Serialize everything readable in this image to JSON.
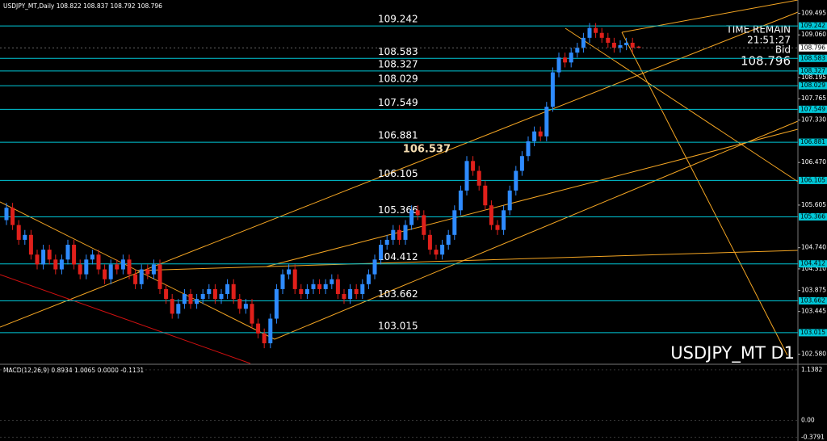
{
  "chart_data": {
    "type": "candlestick",
    "title": "USDJPY_MT,Daily  108.822 108.837 108.792 108.796",
    "watermark": "USDJPY_MT D1",
    "info": {
      "time_remain": "TIME REMAIN",
      "countdown": "21:51:27",
      "bid_label": "Bid",
      "bid": 108.796
    },
    "annotation": 106.537,
    "up_color": "#2e8bff",
    "down_color": "#e0201b",
    "level_color": "#00c8d8",
    "levels": [
      109.242,
      108.583,
      108.327,
      108.029,
      107.549,
      106.881,
      106.105,
      105.366,
      104.412,
      103.662,
      103.015
    ],
    "ylim": [
      102.374,
      109.768
    ],
    "yticks": [
      109.495,
      {
        "value": 109.06,
        "label": "109.060"
      },
      108.195,
      107.765,
      {
        "value": 107.33,
        "label": "107.330"
      },
      {
        "value": 106.47,
        "label": "106.470"
      },
      105.605,
      {
        "value": 104.74,
        "label": "104.740"
      },
      {
        "value": 104.31,
        "label": "104.310"
      },
      103.875,
      103.445,
      {
        "value": 102.58,
        "label": "102.580"
      }
    ],
    "open": [
      105.3,
      105.55,
      105.2,
      104.9,
      105.0,
      104.6,
      104.4,
      104.7,
      104.5,
      104.3,
      104.5,
      104.8,
      104.4,
      104.2,
      104.5,
      104.6,
      104.3,
      104.1,
      104.4,
      104.3,
      104.5,
      104.2,
      104.0,
      104.3,
      104.2,
      104.4,
      103.9,
      103.7,
      103.4,
      103.6,
      103.8,
      103.6,
      103.7,
      103.8,
      103.9,
      103.7,
      103.8,
      104.0,
      103.7,
      103.5,
      103.6,
      103.2,
      103.0,
      102.8,
      103.3,
      103.9,
      104.2,
      104.3,
      103.9,
      103.8,
      103.9,
      104.0,
      103.9,
      104.0,
      104.1,
      103.8,
      103.7,
      103.9,
      103.8,
      104.0,
      104.2,
      104.5,
      104.8,
      104.9,
      105.1,
      104.9,
      105.2,
      105.5,
      105.4,
      105.0,
      104.7,
      104.6,
      104.8,
      105.0,
      105.5,
      105.9,
      106.5,
      106.3,
      106.0,
      105.6,
      105.2,
      105.1,
      105.5,
      105.9,
      106.3,
      106.6,
      106.9,
      107.1,
      107.0,
      107.6,
      108.3,
      108.6,
      108.5,
      108.7,
      108.8,
      109.0,
      109.2,
      109.1,
      109.0,
      108.9,
      108.8,
      108.85,
      108.9,
      108.822
    ],
    "high": [
      105.65,
      105.65,
      105.3,
      105.1,
      105.1,
      104.7,
      104.8,
      104.8,
      104.6,
      104.6,
      104.9,
      104.9,
      104.5,
      104.6,
      104.7,
      104.7,
      104.4,
      104.5,
      104.5,
      104.6,
      104.6,
      104.3,
      104.4,
      104.4,
      104.5,
      104.5,
      104.0,
      103.8,
      103.7,
      103.9,
      103.9,
      103.8,
      103.9,
      104.0,
      104.0,
      103.9,
      104.1,
      104.1,
      103.8,
      103.7,
      103.7,
      103.3,
      103.1,
      103.4,
      104.0,
      104.3,
      104.4,
      104.4,
      104.0,
      104.0,
      104.1,
      104.1,
      104.1,
      104.2,
      104.2,
      103.9,
      104.0,
      104.0,
      104.1,
      104.3,
      104.6,
      104.9,
      105.0,
      105.2,
      105.2,
      105.3,
      105.6,
      105.6,
      105.5,
      105.1,
      104.8,
      104.9,
      105.1,
      105.6,
      106.0,
      106.6,
      106.6,
      106.4,
      106.1,
      105.7,
      105.3,
      105.6,
      106.0,
      106.4,
      106.7,
      107.0,
      107.2,
      107.2,
      107.7,
      108.4,
      108.7,
      108.7,
      108.8,
      108.9,
      109.1,
      109.3,
      109.3,
      109.2,
      109.1,
      109.0,
      108.95,
      109.0,
      109.0,
      108.837
    ],
    "low": [
      105.2,
      105.1,
      104.8,
      104.8,
      104.5,
      104.3,
      104.3,
      104.4,
      104.2,
      104.2,
      104.4,
      104.3,
      104.1,
      104.1,
      104.4,
      104.2,
      104.0,
      104.0,
      104.2,
      104.2,
      104.1,
      103.9,
      103.9,
      104.1,
      104.1,
      103.8,
      103.6,
      103.3,
      103.3,
      103.5,
      103.5,
      103.5,
      103.6,
      103.7,
      103.6,
      103.6,
      103.7,
      103.6,
      103.4,
      103.4,
      103.1,
      102.9,
      102.7,
      102.7,
      103.2,
      103.8,
      104.1,
      103.8,
      103.7,
      103.7,
      103.8,
      103.8,
      103.8,
      103.9,
      103.7,
      103.6,
      103.6,
      103.7,
      103.7,
      103.9,
      104.1,
      104.4,
      104.7,
      104.8,
      104.8,
      104.8,
      105.1,
      105.3,
      104.9,
      104.6,
      104.5,
      104.5,
      104.7,
      104.9,
      105.4,
      105.8,
      106.2,
      105.9,
      105.5,
      105.1,
      105.0,
      105.0,
      105.4,
      105.8,
      106.2,
      106.5,
      106.8,
      106.9,
      106.9,
      107.5,
      108.2,
      108.4,
      108.4,
      108.6,
      108.7,
      108.9,
      109.0,
      108.9,
      108.8,
      108.7,
      108.7,
      108.75,
      108.7,
      108.792
    ],
    "close": [
      105.55,
      105.2,
      104.9,
      105.0,
      104.6,
      104.4,
      104.7,
      104.5,
      104.3,
      104.5,
      104.8,
      104.4,
      104.2,
      104.5,
      104.6,
      104.3,
      104.1,
      104.4,
      104.3,
      104.5,
      104.2,
      104.0,
      104.3,
      104.2,
      104.4,
      103.9,
      103.7,
      103.4,
      103.6,
      103.8,
      103.6,
      103.7,
      103.8,
      103.9,
      103.7,
      103.8,
      104.0,
      103.7,
      103.5,
      103.6,
      103.2,
      103.0,
      102.8,
      103.3,
      103.9,
      104.2,
      104.3,
      103.9,
      103.8,
      103.9,
      104.0,
      103.9,
      104.0,
      104.1,
      103.8,
      103.7,
      103.9,
      103.8,
      104.0,
      104.2,
      104.5,
      104.8,
      104.9,
      105.1,
      104.9,
      105.2,
      105.5,
      105.4,
      105.0,
      104.7,
      104.6,
      104.8,
      105.0,
      105.5,
      105.9,
      106.5,
      106.3,
      106.0,
      105.6,
      105.2,
      105.1,
      105.5,
      105.9,
      106.3,
      106.6,
      106.9,
      107.1,
      107.0,
      107.6,
      108.3,
      108.6,
      108.5,
      108.7,
      108.8,
      109.0,
      109.2,
      109.1,
      109.0,
      108.9,
      108.8,
      108.85,
      108.9,
      108.8,
      108.796
    ],
    "macd": {
      "title": "MACD(12,26,9) 0.8934 1.0065 0.0000 -0.1131",
      "ylim": [
        -0.463,
        1.245
      ],
      "yticks": [
        1.1382,
        {
          "value": 0,
          "label": "0.00"
        },
        -0.3791
      ]
    }
  }
}
